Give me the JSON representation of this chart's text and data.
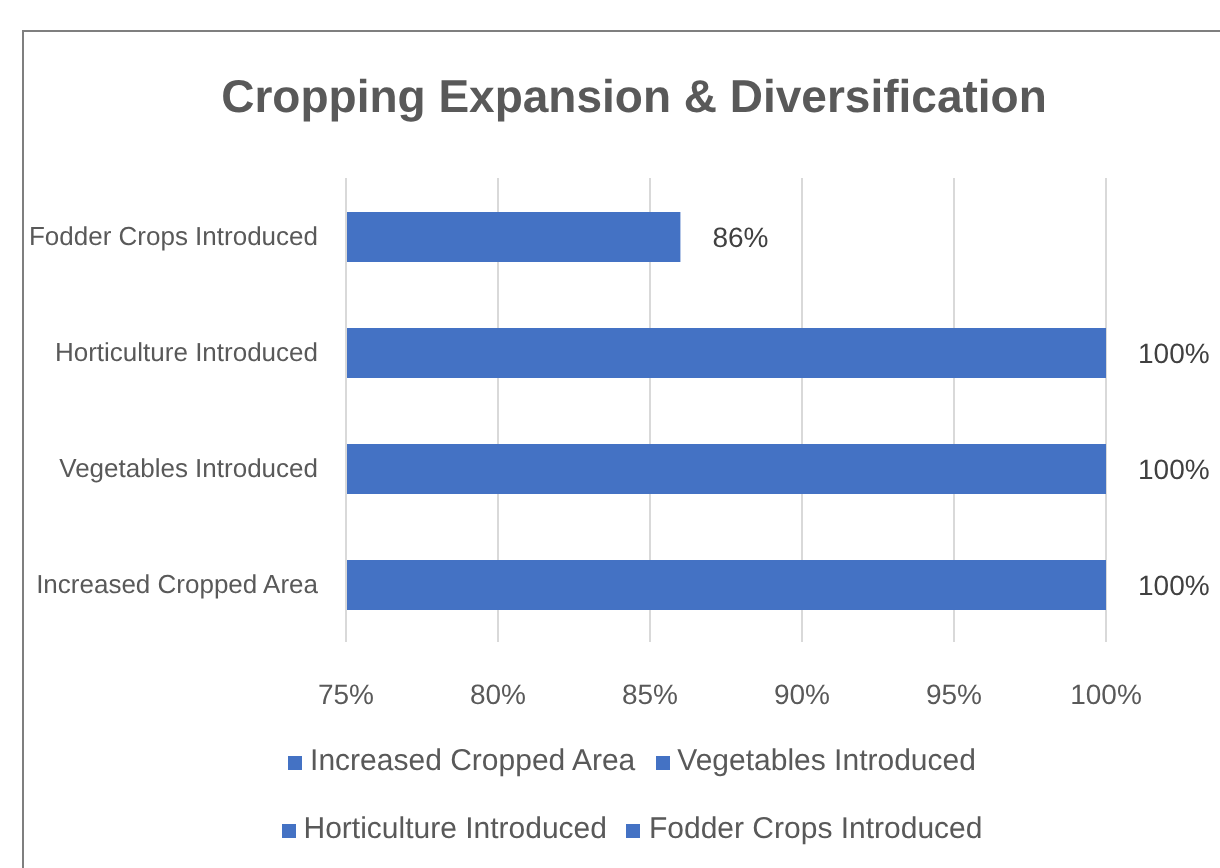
{
  "chart_data": {
    "type": "bar",
    "orientation": "horizontal",
    "title": "Cropping Expansion & Diversification",
    "categories": [
      "Fodder Crops Introduced",
      "Horticulture Introduced",
      "Vegetables Introduced",
      "Increased Cropped Area"
    ],
    "series": [
      {
        "name": "Increased Cropped Area",
        "color": "#4472c4",
        "values": [
          null,
          null,
          null,
          100
        ],
        "value_labels": [
          null,
          null,
          null,
          "100%"
        ]
      },
      {
        "name": "Vegetables Introduced",
        "color": "#4472c4",
        "values": [
          null,
          null,
          100,
          null
        ],
        "value_labels": [
          null,
          null,
          "100%",
          null
        ]
      },
      {
        "name": "Horticulture Introduced",
        "color": "#4472c4",
        "values": [
          null,
          100,
          null,
          null
        ],
        "value_labels": [
          null,
          "100%",
          null,
          null
        ]
      },
      {
        "name": "Fodder Crops Introduced",
        "color": "#4472c4",
        "values": [
          86,
          null,
          null,
          null
        ],
        "value_labels": [
          "86%",
          null,
          null,
          null
        ]
      }
    ],
    "xlim": [
      75,
      100
    ],
    "xticks": [
      {
        "value": 75,
        "label": "75%"
      },
      {
        "value": 80,
        "label": "80%"
      },
      {
        "value": 85,
        "label": "85%"
      },
      {
        "value": 90,
        "label": "90%"
      },
      {
        "value": 95,
        "label": "95%"
      },
      {
        "value": 100,
        "label": "100%"
      }
    ],
    "grid": "x",
    "legend": "bottom"
  }
}
